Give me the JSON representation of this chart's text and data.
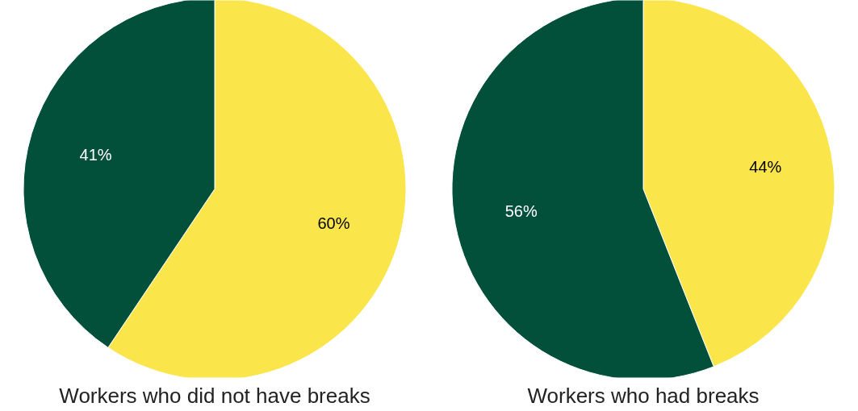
{
  "chart_data": [
    {
      "type": "pie",
      "title": "Workers who did not have breaks",
      "categories": [
        null,
        null
      ],
      "values": [
        60,
        41
      ],
      "colors": [
        "#fae54a",
        "#03503a"
      ],
      "value_labels": [
        "60%",
        "41%"
      ]
    },
    {
      "type": "pie",
      "title": "Workers who had breaks",
      "categories": [
        null,
        null
      ],
      "values": [
        44,
        56
      ],
      "colors": [
        "#fae54a",
        "#03503a"
      ],
      "value_labels": [
        "44%",
        "56%"
      ]
    }
  ]
}
